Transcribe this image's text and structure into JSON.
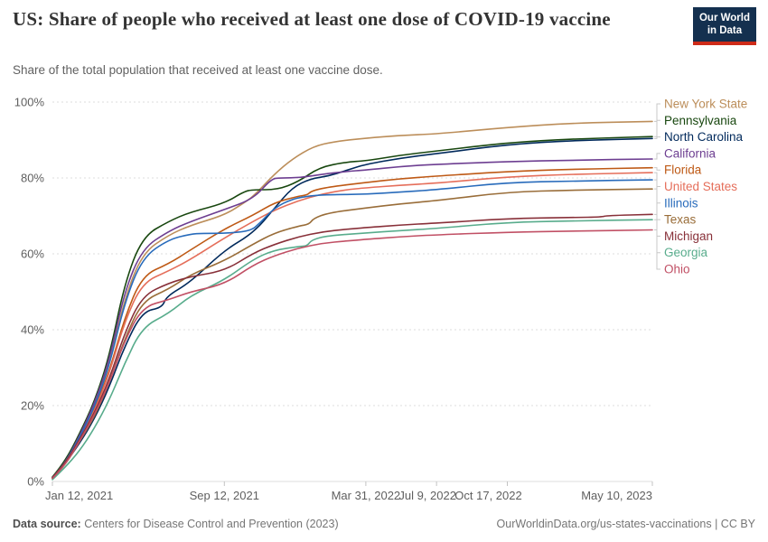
{
  "header": {
    "title": "US: Share of people who received at least one dose of COVID-19 vaccine",
    "subtitle": "Share of the total population that received at least one vaccine dose.",
    "logo_line1": "Our World",
    "logo_line2": "in Data"
  },
  "footer": {
    "source_label": "Data source:",
    "source_text": " Centers for Disease Control and Prevention (2023)",
    "rights": "OurWorldinData.org/us-states-vaccinations | CC BY"
  },
  "colors": {
    "logo_bg": "#14304f",
    "logo_bar": "#ce2b19",
    "grid": "#dcdcdc",
    "axis": "#c3c3c3",
    "tick_label": "#5f5f5f",
    "connector": "#c8c8c8"
  },
  "chart_data": {
    "type": "line",
    "title": "US: Share of people who received at least one dose of COVID-19 vaccine",
    "subtitle": "Share of the total population that received at least one vaccine dose.",
    "grid": true,
    "legend_position": "right",
    "ylim": [
      0,
      100
    ],
    "y_ticks": [
      {
        "value": 0,
        "label": "0%"
      },
      {
        "value": 20,
        "label": "20%"
      },
      {
        "value": 40,
        "label": "40%"
      },
      {
        "value": 60,
        "label": "60%"
      },
      {
        "value": 80,
        "label": "80%"
      },
      {
        "value": 100,
        "label": "100%"
      }
    ],
    "x_ticks": [
      {
        "label": "Jan 12, 2021",
        "t": 0.0,
        "anchor": "start",
        "dx": -8
      },
      {
        "label": "Sep 12, 2021",
        "t": 0.2866,
        "anchor": "middle",
        "dx": 0
      },
      {
        "label": "Mar 31, 2022",
        "t": 0.5224,
        "anchor": "middle",
        "dx": 0
      },
      {
        "label": "Jul 9, 2022",
        "t": 0.6403,
        "anchor": "middle",
        "dx": -10
      },
      {
        "label": "Oct 17, 2022",
        "t": 0.7583,
        "anchor": "middle",
        "dx": -21
      },
      {
        "label": "May 10, 2023",
        "t": 1.0,
        "anchor": "end",
        "dx": 0
      }
    ],
    "x_range_note": "t is fraction of time axis from Jan 12, 2021 to May 10, 2023; values are percent of total population",
    "series": [
      {
        "name": "New York State",
        "color": "#BC8E5A",
        "points": [
          [
            0,
            1
          ],
          [
            0.02,
            4.5
          ],
          [
            0.045,
            11.5
          ],
          [
            0.07,
            20
          ],
          [
            0.095,
            31
          ],
          [
            0.12,
            48
          ],
          [
            0.15,
            60.2
          ],
          [
            0.194,
            65
          ],
          [
            0.23,
            67.5
          ],
          [
            0.287,
            70.2
          ],
          [
            0.32,
            73.5
          ],
          [
            0.335,
            75.2
          ],
          [
            0.37,
            81
          ],
          [
            0.4,
            85
          ],
          [
            0.435,
            88.3
          ],
          [
            0.47,
            89.6
          ],
          [
            0.522,
            90.5
          ],
          [
            0.58,
            91.2
          ],
          [
            0.64,
            91.6
          ],
          [
            0.758,
            93.3
          ],
          [
            0.87,
            94.5
          ],
          [
            1,
            94.9
          ]
        ]
      },
      {
        "name": "Pennsylvania",
        "color": "#18470F",
        "points": [
          [
            0,
            1.2
          ],
          [
            0.02,
            5
          ],
          [
            0.045,
            12.5
          ],
          [
            0.07,
            21
          ],
          [
            0.095,
            33
          ],
          [
            0.12,
            52
          ],
          [
            0.15,
            64.5
          ],
          [
            0.194,
            68.6
          ],
          [
            0.23,
            71
          ],
          [
            0.287,
            73.3
          ],
          [
            0.32,
            76.5
          ],
          [
            0.335,
            76.9
          ],
          [
            0.375,
            76.9
          ],
          [
            0.41,
            79
          ],
          [
            0.445,
            82.8
          ],
          [
            0.49,
            84.2
          ],
          [
            0.522,
            84.5
          ],
          [
            0.58,
            86
          ],
          [
            0.64,
            87.1
          ],
          [
            0.758,
            89.3
          ],
          [
            0.87,
            90.3
          ],
          [
            1,
            90.9
          ]
        ]
      },
      {
        "name": "North Carolina",
        "color": "#00295B",
        "points": [
          [
            0,
            1
          ],
          [
            0.02,
            4.5
          ],
          [
            0.045,
            10
          ],
          [
            0.07,
            16.5
          ],
          [
            0.095,
            25
          ],
          [
            0.12,
            35.5
          ],
          [
            0.15,
            44.8
          ],
          [
            0.183,
            45.8
          ],
          [
            0.19,
            48.8
          ],
          [
            0.23,
            52.5
          ],
          [
            0.287,
            61
          ],
          [
            0.335,
            65.5
          ],
          [
            0.37,
            72
          ],
          [
            0.4,
            77.5
          ],
          [
            0.43,
            79.8
          ],
          [
            0.46,
            80.5
          ],
          [
            0.49,
            82
          ],
          [
            0.522,
            83.6
          ],
          [
            0.58,
            85.2
          ],
          [
            0.64,
            86.4
          ],
          [
            0.758,
            88.8
          ],
          [
            0.87,
            89.9
          ],
          [
            1,
            90.4
          ]
        ]
      },
      {
        "name": "California",
        "color": "#6D3E91",
        "points": [
          [
            0,
            1
          ],
          [
            0.02,
            4.5
          ],
          [
            0.045,
            12
          ],
          [
            0.07,
            20.5
          ],
          [
            0.095,
            32
          ],
          [
            0.12,
            50
          ],
          [
            0.15,
            61.4
          ],
          [
            0.194,
            66
          ],
          [
            0.23,
            68.5
          ],
          [
            0.287,
            71.7
          ],
          [
            0.335,
            74.5
          ],
          [
            0.365,
            79.8
          ],
          [
            0.38,
            80
          ],
          [
            0.415,
            80.1
          ],
          [
            0.45,
            81
          ],
          [
            0.49,
            81.7
          ],
          [
            0.522,
            82.1
          ],
          [
            0.58,
            83
          ],
          [
            0.64,
            83.6
          ],
          [
            0.758,
            84.3
          ],
          [
            0.87,
            84.7
          ],
          [
            1,
            85
          ]
        ]
      },
      {
        "name": "Florida",
        "color": "#BE5915",
        "points": [
          [
            0,
            0.8
          ],
          [
            0.02,
            4
          ],
          [
            0.045,
            11.5
          ],
          [
            0.07,
            19
          ],
          [
            0.095,
            29
          ],
          [
            0.12,
            43
          ],
          [
            0.15,
            54.3
          ],
          [
            0.194,
            57.4
          ],
          [
            0.23,
            61
          ],
          [
            0.287,
            66.6
          ],
          [
            0.335,
            70.2
          ],
          [
            0.37,
            73.5
          ],
          [
            0.41,
            75.2
          ],
          [
            0.425,
            75.5
          ],
          [
            0.432,
            76.6
          ],
          [
            0.46,
            77.6
          ],
          [
            0.522,
            78.8
          ],
          [
            0.58,
            79.8
          ],
          [
            0.64,
            80.5
          ],
          [
            0.758,
            81.7
          ],
          [
            0.87,
            82.3
          ],
          [
            1,
            82.7
          ]
        ]
      },
      {
        "name": "United States",
        "color": "#E56E5A",
        "points": [
          [
            0,
            1
          ],
          [
            0.02,
            4.5
          ],
          [
            0.045,
            11
          ],
          [
            0.07,
            18.5
          ],
          [
            0.095,
            28.5
          ],
          [
            0.12,
            42
          ],
          [
            0.15,
            52.4
          ],
          [
            0.194,
            55.5
          ],
          [
            0.23,
            58.5
          ],
          [
            0.287,
            64.2
          ],
          [
            0.335,
            68.6
          ],
          [
            0.37,
            71.5
          ],
          [
            0.41,
            74
          ],
          [
            0.45,
            75.8
          ],
          [
            0.49,
            76.9
          ],
          [
            0.522,
            77.4
          ],
          [
            0.58,
            78.1
          ],
          [
            0.64,
            78.6
          ],
          [
            0.758,
            80.3
          ],
          [
            0.87,
            81
          ],
          [
            1,
            81.4
          ]
        ]
      },
      {
        "name": "Illinois",
        "color": "#286BBB",
        "points": [
          [
            0,
            1
          ],
          [
            0.02,
            4.5
          ],
          [
            0.045,
            11.5
          ],
          [
            0.07,
            19.5
          ],
          [
            0.095,
            30.5
          ],
          [
            0.12,
            47
          ],
          [
            0.15,
            59
          ],
          [
            0.194,
            63.8
          ],
          [
            0.23,
            65.2
          ],
          [
            0.25,
            65.4
          ],
          [
            0.287,
            65.4
          ],
          [
            0.33,
            66
          ],
          [
            0.345,
            68
          ],
          [
            0.37,
            72.1
          ],
          [
            0.4,
            74.5
          ],
          [
            0.43,
            75.3
          ],
          [
            0.46,
            75.6
          ],
          [
            0.522,
            75.7
          ],
          [
            0.58,
            76.3
          ],
          [
            0.64,
            76.9
          ],
          [
            0.758,
            78.8
          ],
          [
            0.87,
            79.2
          ],
          [
            1,
            79.5
          ]
        ]
      },
      {
        "name": "Texas",
        "color": "#996D39",
        "points": [
          [
            0,
            0.8
          ],
          [
            0.02,
            4
          ],
          [
            0.045,
            10.5
          ],
          [
            0.07,
            17
          ],
          [
            0.095,
            26
          ],
          [
            0.12,
            37.5
          ],
          [
            0.15,
            47.6
          ],
          [
            0.194,
            50.7
          ],
          [
            0.23,
            54.5
          ],
          [
            0.287,
            58.2
          ],
          [
            0.335,
            62.6
          ],
          [
            0.37,
            65.5
          ],
          [
            0.41,
            67.3
          ],
          [
            0.428,
            67.8
          ],
          [
            0.435,
            69.3
          ],
          [
            0.46,
            70.8
          ],
          [
            0.522,
            72.1
          ],
          [
            0.58,
            73.2
          ],
          [
            0.64,
            74
          ],
          [
            0.758,
            76.3
          ],
          [
            0.87,
            76.8
          ],
          [
            1,
            77.1
          ]
        ]
      },
      {
        "name": "Michigan",
        "color": "#883039",
        "points": [
          [
            0,
            1
          ],
          [
            0.02,
            4.5
          ],
          [
            0.045,
            11
          ],
          [
            0.07,
            18
          ],
          [
            0.095,
            27
          ],
          [
            0.12,
            39
          ],
          [
            0.15,
            49
          ],
          [
            0.194,
            52.3
          ],
          [
            0.23,
            54
          ],
          [
            0.287,
            55.5
          ],
          [
            0.335,
            60.2
          ],
          [
            0.37,
            62.5
          ],
          [
            0.41,
            64.5
          ],
          [
            0.45,
            65.8
          ],
          [
            0.49,
            66.5
          ],
          [
            0.522,
            66.9
          ],
          [
            0.58,
            67.6
          ],
          [
            0.64,
            68.1
          ],
          [
            0.758,
            69.3
          ],
          [
            0.87,
            69.6
          ],
          [
            0.915,
            69.7
          ],
          [
            0.925,
            70.1
          ],
          [
            1,
            70.4
          ]
        ]
      },
      {
        "name": "Georgia",
        "color": "#58AC8C",
        "points": [
          [
            0,
            0.5
          ],
          [
            0.02,
            3.5
          ],
          [
            0.045,
            8
          ],
          [
            0.07,
            14
          ],
          [
            0.095,
            21.5
          ],
          [
            0.12,
            31
          ],
          [
            0.15,
            40.7
          ],
          [
            0.194,
            44.3
          ],
          [
            0.23,
            49
          ],
          [
            0.287,
            53.1
          ],
          [
            0.335,
            58.6
          ],
          [
            0.37,
            61
          ],
          [
            0.41,
            61.9
          ],
          [
            0.425,
            62.1
          ],
          [
            0.432,
            63.7
          ],
          [
            0.46,
            64.8
          ],
          [
            0.522,
            65.5
          ],
          [
            0.58,
            66.1
          ],
          [
            0.64,
            66.7
          ],
          [
            0.758,
            68.3
          ],
          [
            0.87,
            68.7
          ],
          [
            1,
            69
          ]
        ]
      },
      {
        "name": "Ohio",
        "color": "#C15065",
        "points": [
          [
            0,
            0.8
          ],
          [
            0.02,
            4
          ],
          [
            0.045,
            10.5
          ],
          [
            0.07,
            17.5
          ],
          [
            0.095,
            26
          ],
          [
            0.12,
            37
          ],
          [
            0.15,
            46
          ],
          [
            0.194,
            47.9
          ],
          [
            0.23,
            50
          ],
          [
            0.287,
            52
          ],
          [
            0.335,
            57.1
          ],
          [
            0.37,
            59.5
          ],
          [
            0.41,
            61.5
          ],
          [
            0.45,
            62.8
          ],
          [
            0.49,
            63.4
          ],
          [
            0.522,
            63.8
          ],
          [
            0.58,
            64.5
          ],
          [
            0.64,
            65
          ],
          [
            0.758,
            65.7
          ],
          [
            0.87,
            66
          ],
          [
            1,
            66.3
          ]
        ]
      }
    ]
  }
}
